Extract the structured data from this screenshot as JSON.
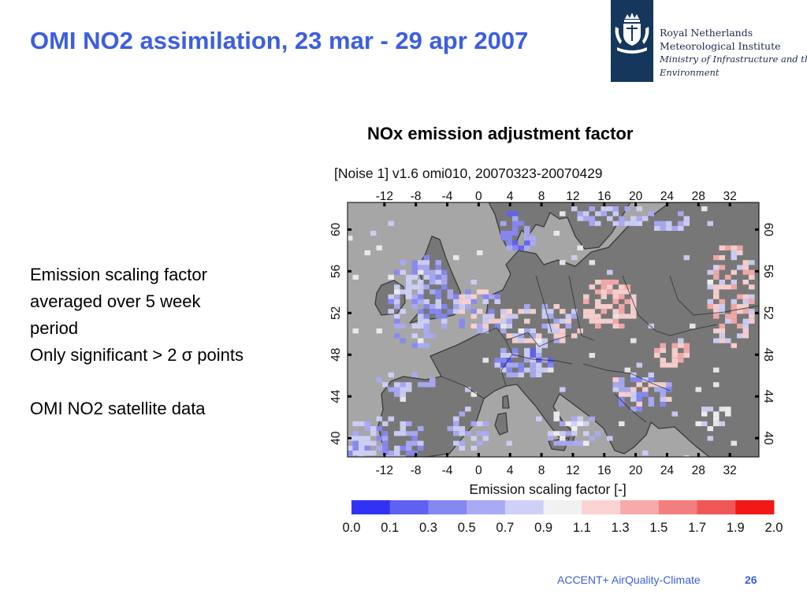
{
  "slide": {
    "title": "OMI NO2 assimilation, 23 mar - 29 apr 2007",
    "map_heading": "NOx emission adjustment factor",
    "bullets": [
      "Emission scaling factor",
      "averaged over 5 week",
      "period",
      "Only significant > 2 σ points",
      "",
      "OMI NO2 satellite data"
    ],
    "footer": "ACCENT+ AirQuality-Climate",
    "page_number": "26"
  },
  "logo": {
    "lines": [
      "Royal Netherlands",
      "Meteorological Institute",
      "Ministry of Infrastructure and the",
      "Environment"
    ],
    "icon": "crest-icon"
  },
  "map": {
    "run_label": "[Noise 1]  v1.6 omi010, 20070323-20070429",
    "lon_ticks": [
      "-12",
      "-8",
      "-4",
      "0",
      "4",
      "8",
      "12",
      "16",
      "20",
      "24",
      "28",
      "32"
    ],
    "lat_ticks": [
      "60",
      "56",
      "52",
      "48",
      "44",
      "40"
    ],
    "xlabel": "Emission scaling factor [-]",
    "colorbar": {
      "ticks": [
        "0.0",
        "0.1",
        "0.3",
        "0.5",
        "0.7",
        "0.9",
        "1.1",
        "1.3",
        "1.5",
        "1.7",
        "1.9",
        "2.0"
      ],
      "colors": [
        "#3232f5",
        "#5f61f0",
        "#8688f2",
        "#a9aaf4",
        "#cfd0f8",
        "#f1f1f1",
        "#fbd2d2",
        "#f7aaaa",
        "#f37e7e",
        "#ef5757",
        "#f21818"
      ]
    },
    "colors": {
      "sea": "#a6a6a6",
      "land": "#777777",
      "coast": "#3a3a3a"
    }
  }
}
